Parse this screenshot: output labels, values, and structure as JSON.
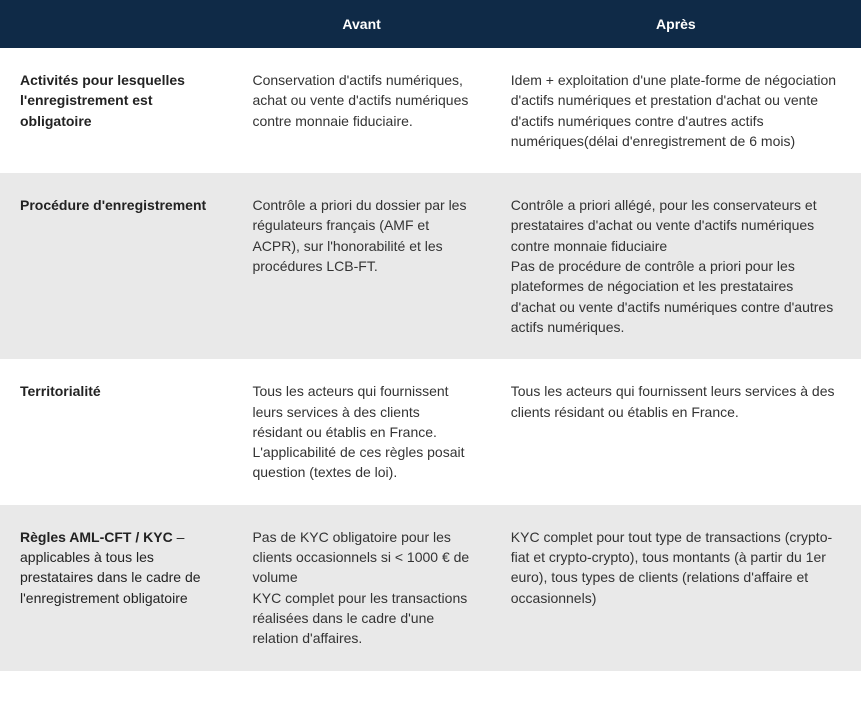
{
  "table": {
    "header_bg": "#0f2a47",
    "header_fg": "#ffffff",
    "alt_row_bg": "#e9e9e9",
    "columns": [
      "",
      "Avant",
      "Après"
    ],
    "rows": [
      {
        "alt": false,
        "label_strong": "Activités pour lesquelles l'enregistrement est obligatoire",
        "label_suffix": "",
        "avant": "Conservation d'actifs numériques, achat ou vente d'actifs numériques contre monnaie fiduciaire.",
        "apres": "Idem + exploitation d'une plate-forme de négociation d'actifs numériques et prestation d'achat ou vente d'actifs numériques contre d'autres actifs numériques(délai d'enregistrement de 6 mois)"
      },
      {
        "alt": true,
        "label_strong": "Procédure d'enregistrement",
        "label_suffix": "",
        "avant": "Contrôle a priori du dossier par les régulateurs français (AMF et ACPR), sur l'honorabilité et les procédures LCB-FT.",
        "apres": "Contrôle a priori allégé, pour les conservateurs et prestataires d'achat ou vente d'actifs numériques contre monnaie fiduciaire\nPas de procédure de contrôle a priori pour les plateformes de négociation et les prestataires d'achat ou vente d'actifs numériques contre d'autres actifs numériques."
      },
      {
        "alt": false,
        "label_strong": "Territorialité",
        "label_suffix": "",
        "avant": "Tous les acteurs qui fournissent leurs services à des clients résidant ou établis en France. L'applicabilité de ces règles posait question (textes de loi).",
        "apres": "Tous les acteurs qui fournissent leurs services à des clients résidant ou établis en France."
      },
      {
        "alt": true,
        "label_strong": "Règles AML-CFT / KYC",
        "label_suffix": " – applicables à tous les prestataires dans le cadre de l'enregistrement obligatoire",
        "avant": "Pas de KYC obligatoire pour les clients occasionnels si < 1000 € de volume\nKYC complet pour les transactions réalisées dans le cadre d'une relation d'affaires.",
        "apres": "KYC complet pour tout type de transactions (crypto-fiat et crypto-crypto), tous montants (à partir du 1er euro), tous types de clients (relations d'affaire et occasionnels)"
      }
    ]
  }
}
